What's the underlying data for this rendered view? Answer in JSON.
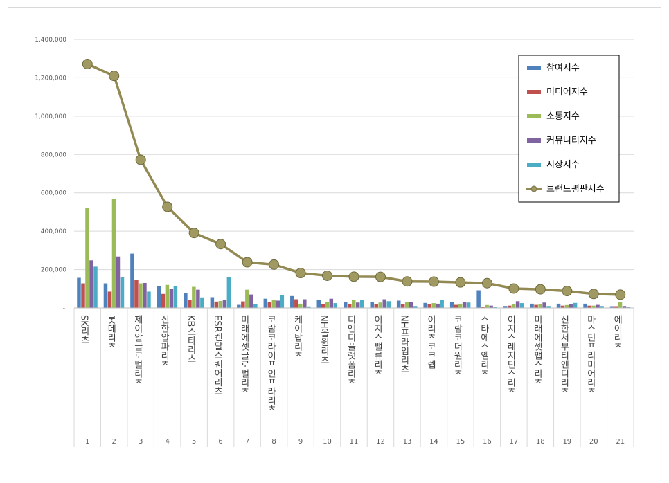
{
  "chart_data": {
    "type": "bar",
    "title": "",
    "xlabel": "",
    "ylabel": "",
    "ylim": [
      0,
      1400000
    ],
    "y_ticks": [
      "-",
      "200,000",
      "400,000",
      "600,000",
      "800,000",
      "1,000,000",
      "1,200,000",
      "1,400,000"
    ],
    "grid": true,
    "legend_position": "top-right",
    "categories": [
      "1",
      "2",
      "3",
      "4",
      "5",
      "6",
      "7",
      "8",
      "9",
      "10",
      "11",
      "12",
      "13",
      "14",
      "15",
      "16",
      "17",
      "18",
      "19",
      "20",
      "21"
    ],
    "category_names": [
      "SK리츠",
      "롯데리츠",
      "제이알글로벌리츠",
      "신한알파리츠",
      "KB스타리츠",
      "ESR켄달스퀘어리츠",
      "미래에셋글로벌리츠",
      "코람코라이프인프라리츠",
      "케이탑리츠",
      "NH올원리츠",
      "디앤디플랫폼리츠",
      "이지스밸류리츠",
      "NH프라임리츠",
      "이리츠코크렙",
      "코람코더원리츠",
      "스타에스엠리츠",
      "이지스레지던스리츠",
      "미래에셋맵스리츠",
      "신한서부티엔디리츠",
      "마스턴프리미어리츠",
      "에이리츠"
    ],
    "series": [
      {
        "name": "참여지수",
        "color": "#4F81BD",
        "values": [
          157000,
          128000,
          283000,
          113000,
          78000,
          56000,
          16000,
          48000,
          62000,
          40000,
          30000,
          30000,
          38000,
          26000,
          32000,
          92000,
          10000,
          22000,
          22000,
          22000,
          9000
        ]
      },
      {
        "name": "미디어지수",
        "color": "#C0504D",
        "values": [
          128000,
          85000,
          148000,
          73000,
          40000,
          33000,
          34000,
          32000,
          45000,
          20000,
          20000,
          20000,
          20000,
          20000,
          16000,
          5000,
          12000,
          16000,
          12000,
          12000,
          9000
        ]
      },
      {
        "name": "소통지수",
        "color": "#9BBB59",
        "values": [
          520000,
          568000,
          128000,
          120000,
          110000,
          36000,
          95000,
          40000,
          22000,
          30000,
          40000,
          28000,
          30000,
          25000,
          22000,
          15000,
          18000,
          18000,
          15000,
          12000,
          30000
        ]
      },
      {
        "name": "커뮤니티지수",
        "color": "#8064A2",
        "values": [
          248000,
          268000,
          130000,
          100000,
          95000,
          40000,
          70000,
          38000,
          45000,
          48000,
          28000,
          45000,
          30000,
          22000,
          30000,
          12000,
          35000,
          28000,
          18000,
          16000,
          10000
        ]
      },
      {
        "name": "시장지수",
        "color": "#4BACC6",
        "values": [
          215000,
          162000,
          85000,
          113000,
          55000,
          160000,
          18000,
          65000,
          8000,
          25000,
          42000,
          35000,
          10000,
          42000,
          28000,
          5000,
          25000,
          10000,
          26000,
          10000,
          5000
        ]
      },
      {
        "name": "브랜드평판지수",
        "color": "#938953",
        "type": "line",
        "values": [
          1272000,
          1210000,
          772000,
          527000,
          391000,
          333000,
          238000,
          226000,
          182000,
          168000,
          163000,
          162000,
          138000,
          137000,
          133000,
          129000,
          101000,
          97000,
          88000,
          73000,
          69000
        ]
      }
    ]
  }
}
